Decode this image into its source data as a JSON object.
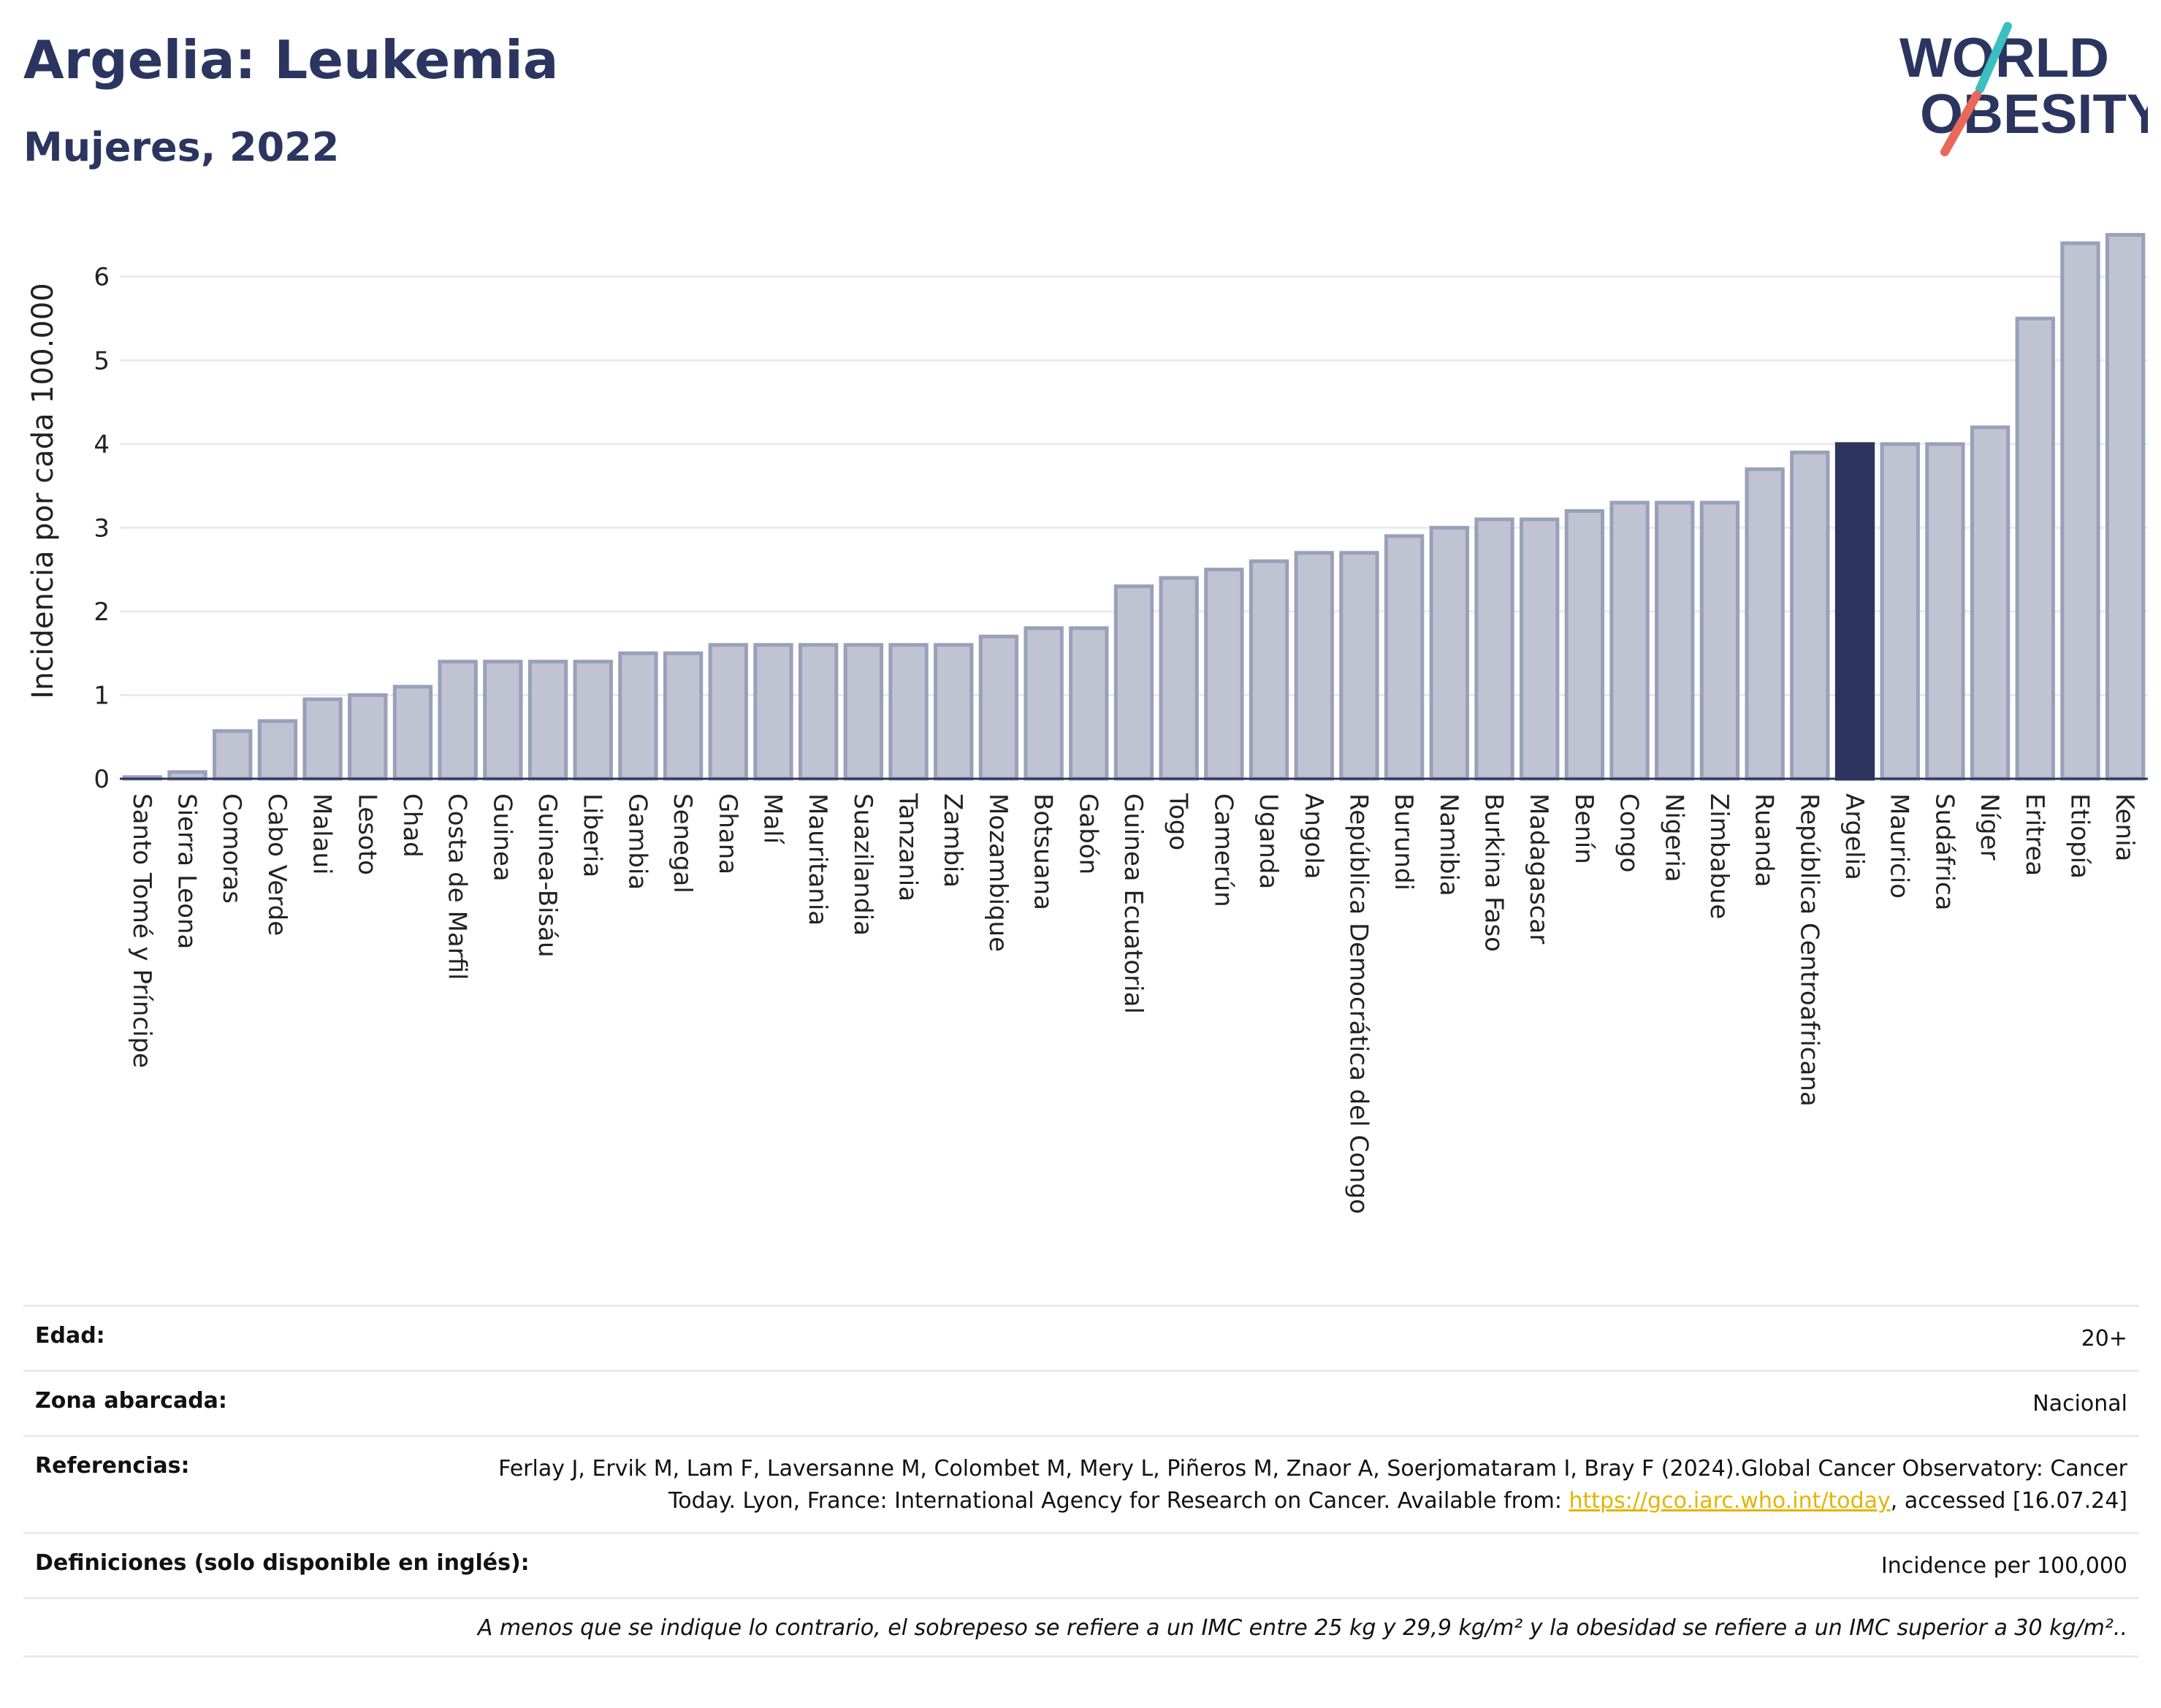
{
  "header": {
    "title": "Argelia: Leukemia",
    "subtitle": "Mujeres, 2022"
  },
  "logo": {
    "line1": "WORLD",
    "line2": "OBESITY",
    "colors": {
      "text": "#2b3560",
      "slash_top": "#3cbfbf",
      "slash_bottom": "#e8685a"
    }
  },
  "chart_data": {
    "type": "bar",
    "ylabel": "Incidencia por cada 100.000",
    "ylim": [
      0,
      6.6
    ],
    "yticks": [
      0,
      1,
      2,
      3,
      4,
      5,
      6
    ],
    "grid": true,
    "highlight": "Argelia",
    "colors": {
      "bar": "#bfc3d2",
      "bar_edge": "#9aa0b8",
      "highlight": "#2b3560"
    },
    "categories": [
      "Santo Tomé y Príncipe",
      "Sierra Leona",
      "Comoras",
      "Cabo Verde",
      "Malaui",
      "Lesoto",
      "Chad",
      "Costa de Marfil",
      "Guinea",
      "Guinea-Bisáu",
      "Liberia",
      "Gambia",
      "Senegal",
      "Ghana",
      "Malí",
      "Mauritania",
      "Suazilandia",
      "Tanzania",
      "Zambia",
      "Mozambique",
      "Botsuana",
      "Gabón",
      "Guinea Ecuatorial",
      "Togo",
      "Camerún",
      "Uganda",
      "Angola",
      "República Democrática del Congo",
      "Burundi",
      "Namibia",
      "Burkina Faso",
      "Madagascar",
      "Benín",
      "Congo",
      "Nigeria",
      "Zimbabue",
      "Ruanda",
      "República Centroafricana",
      "Argelia",
      "Mauricio",
      "Sudáfrica",
      "Níger",
      "Eritrea",
      "Etiopía",
      "Kenia"
    ],
    "values": [
      0.02,
      0.08,
      0.57,
      0.69,
      0.95,
      1.0,
      1.1,
      1.4,
      1.4,
      1.4,
      1.4,
      1.5,
      1.5,
      1.6,
      1.6,
      1.6,
      1.6,
      1.6,
      1.6,
      1.7,
      1.8,
      1.8,
      2.3,
      2.4,
      2.5,
      2.6,
      2.7,
      2.7,
      2.9,
      3.0,
      3.1,
      3.1,
      3.2,
      3.3,
      3.3,
      3.3,
      3.7,
      3.9,
      4.0,
      4.0,
      4.0,
      4.2,
      5.5,
      6.4,
      6.5
    ]
  },
  "info": {
    "age_label": "Edad:",
    "age_value": "20+",
    "area_label": "Zona abarcada:",
    "area_value": "Nacional",
    "ref_label": "Referencias:",
    "ref_text_1": "Ferlay J, Ervik M, Lam F, Laversanne M, Colombet M, Mery L, Piñeros M, Znaor A, Soerjomataram I, Bray F (2024).Global Cancer Observatory: Cancer Today. Lyon, France: International Agency for Research on Cancer. Available from: ",
    "ref_link": "https://gco.iarc.who.int/today",
    "ref_text_2": ", accessed [16.07.24]",
    "def_label": "Definiciones (solo disponible en inglés):",
    "def_value": "Incidence per 100,000",
    "note": "A menos que se indique lo contrario, el sobrepeso se refiere a un IMC entre 25 kg y 29,9 kg/m² y la obesidad se refiere a un IMC superior a 30 kg/m².."
  }
}
